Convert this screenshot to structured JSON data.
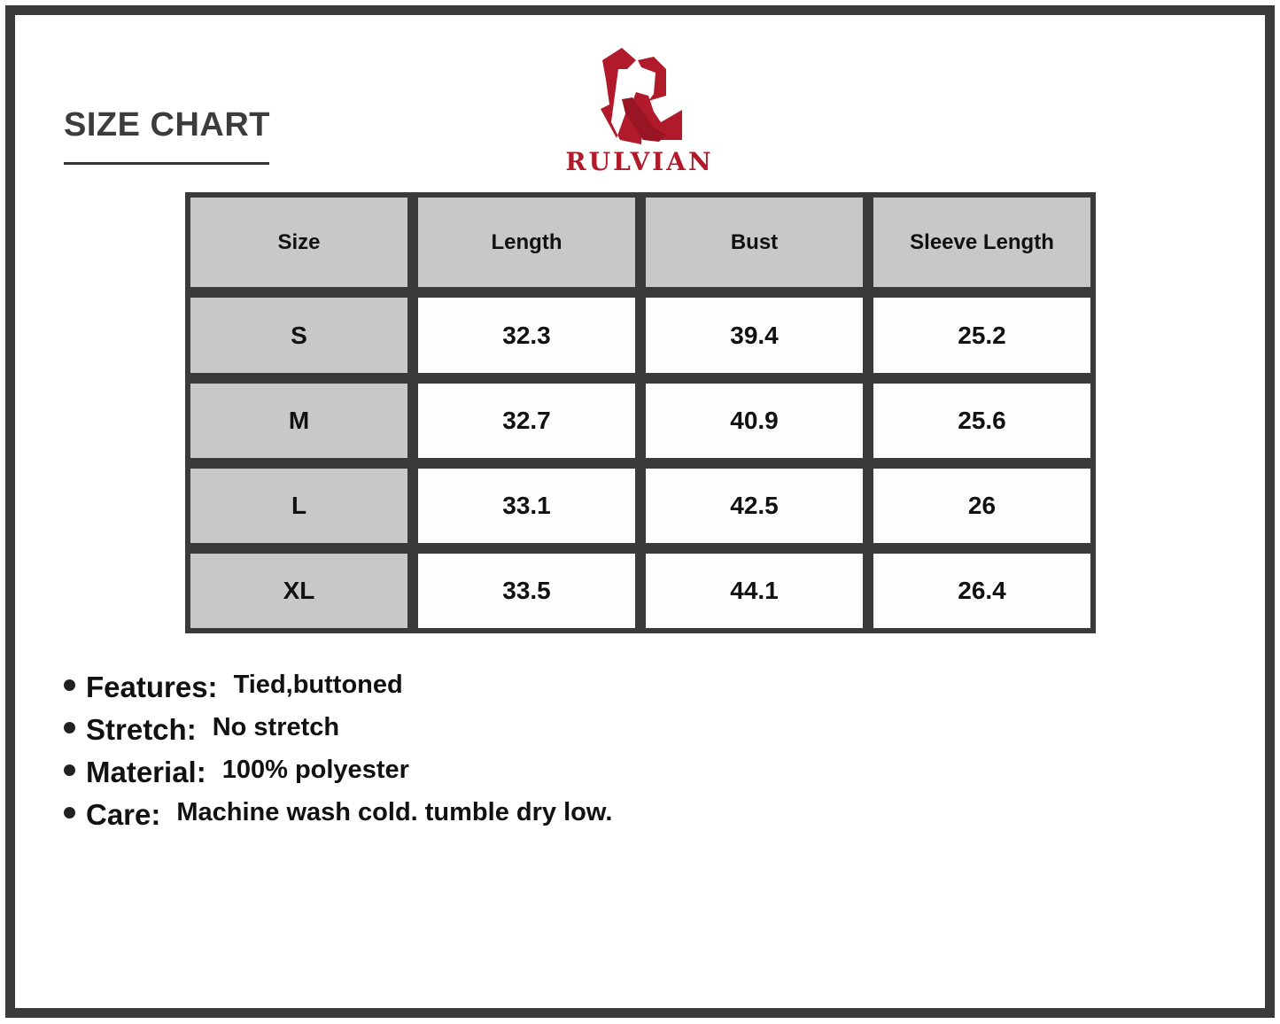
{
  "title": "SIZE CHART",
  "brand": {
    "name": "RULVIAN",
    "color": "#b01a2a"
  },
  "table": {
    "headers": [
      "Size",
      "Length",
      "Bust",
      "Sleeve Length"
    ],
    "rows": [
      [
        "S",
        "32.3",
        "39.4",
        "25.2"
      ],
      [
        "M",
        "32.7",
        "40.9",
        "25.6"
      ],
      [
        "L",
        "33.1",
        "42.5",
        "26"
      ],
      [
        "XL",
        "33.5",
        "44.1",
        "26.4"
      ]
    ]
  },
  "features": [
    {
      "label": "Features:",
      "value": "Tied,buttoned"
    },
    {
      "label": "Stretch:",
      "value": "No stretch"
    },
    {
      "label": "Material:",
      "value": "100% polyester"
    },
    {
      "label": "Care:",
      "value": "Machine wash cold. tumble dry low."
    }
  ]
}
